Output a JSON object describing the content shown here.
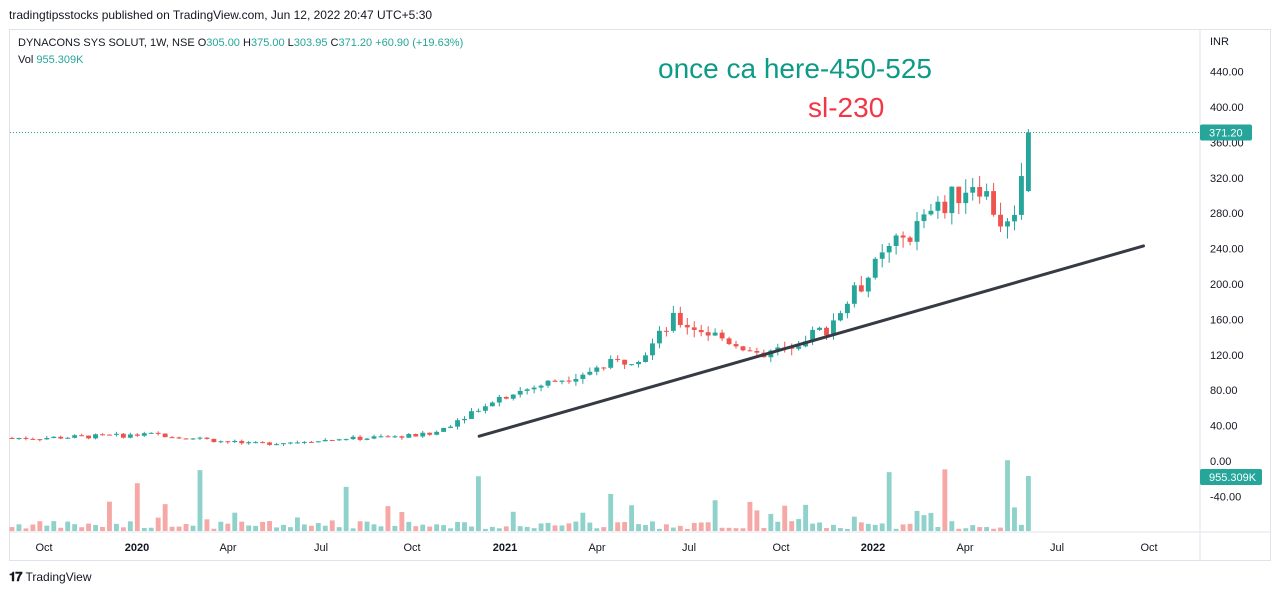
{
  "header": {
    "publisher": "tradingtipsstocks published on TradingView.com, Jun 12, 2022 20:47 UTC+5:30"
  },
  "legend": {
    "symbol": "DYNACONS SYS SOLUT, 1W, NSE",
    "o_label": "O",
    "o": "305.00",
    "h_label": "H",
    "h": "375.00",
    "l_label": "L",
    "l": "303.95",
    "c_label": "C",
    "c": "371.20",
    "change": "+60.90 (+19.63%)",
    "vol_label": "Vol",
    "vol": "955.309K"
  },
  "annotations": {
    "target": "once ca here-450-525",
    "stoploss": "sl-230"
  },
  "footer": {
    "brand": "TradingView"
  },
  "colors": {
    "up": "#26a69a",
    "down": "#ef5350",
    "vol_up": "#8fd2cb",
    "vol_down": "#f5a8a6",
    "trendline": "#363a45"
  },
  "chart_data": {
    "type": "candlestick",
    "currency": "INR",
    "price_ticks": [
      -40,
      0,
      40,
      80,
      120,
      160,
      200,
      240,
      280,
      320,
      360,
      400,
      440
    ],
    "price_tick_labels": [
      "-40.00",
      "0.00",
      "40.00",
      "80.00",
      "120.00",
      "160.00",
      "200.00",
      "240.00",
      "280.00",
      "320.00",
      "360.00",
      "400.00",
      "440.00"
    ],
    "time_labels": [
      "Oct",
      "2020",
      "Apr",
      "Jul",
      "Oct",
      "2021",
      "Apr",
      "Jul",
      "Oct",
      "2022",
      "Apr",
      "Jul",
      "Oct"
    ],
    "time_labels_bold": [
      "2020",
      "2021",
      "2022"
    ],
    "last_price": 371.2,
    "last_price_label": "371.20",
    "last_volume_label": "955.309K",
    "trendline": [
      [
        "2020-12-01",
        28
      ],
      [
        "2022-09-30",
        243
      ]
    ],
    "key_points": [
      {
        "date": "2019-09",
        "close": 26
      },
      {
        "date": "2020-01",
        "close": 30
      },
      {
        "date": "2020-04",
        "close": 19
      },
      {
        "date": "2020-10",
        "close": 30
      },
      {
        "date": "2020-12",
        "close": 70
      },
      {
        "date": "2021-05",
        "close": 120
      },
      {
        "date": "2021-06",
        "close": 160
      },
      {
        "date": "2021-09",
        "close": 120
      },
      {
        "date": "2021-11",
        "close": 150
      },
      {
        "date": "2022-01",
        "close": 235
      },
      {
        "date": "2022-04",
        "close": 320
      },
      {
        "date": "2022-05",
        "close": 260
      },
      {
        "date": "2022-06",
        "close": 371.2
      }
    ]
  }
}
